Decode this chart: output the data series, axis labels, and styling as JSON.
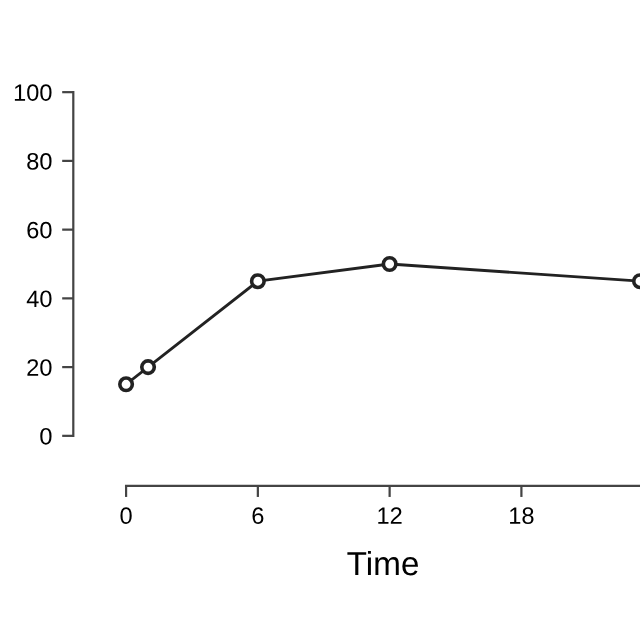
{
  "chart_data": {
    "type": "line",
    "xlabel": "Time",
    "x": [
      0,
      1,
      6,
      12,
      23.4
    ],
    "series": [
      {
        "color": "#222222",
        "values": [
          15,
          20,
          45,
          50,
          45
        ]
      }
    ],
    "xlim": [
      0,
      23.4
    ],
    "xticks": [
      0,
      6,
      12,
      18
    ],
    "ylim": [
      0,
      100
    ],
    "yticks": [
      0,
      20,
      40,
      60,
      80,
      100
    ],
    "marker": "circle",
    "line_style": "solid",
    "grid": false,
    "legend": false
  }
}
